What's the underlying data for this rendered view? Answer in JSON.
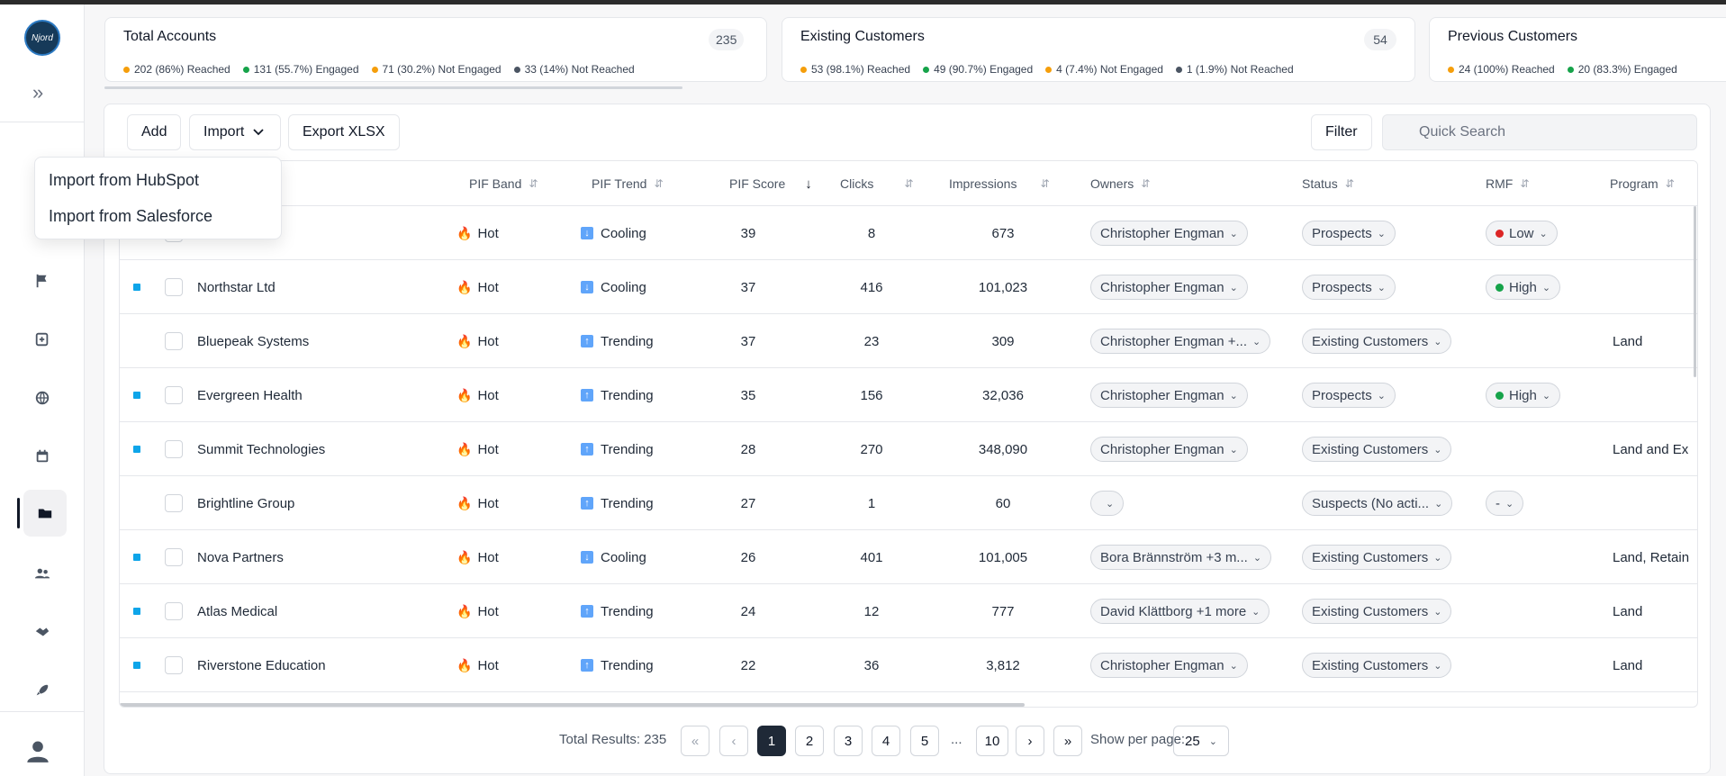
{
  "app": {
    "logo_text": "Njord"
  },
  "sidebar": {
    "icons": [
      "expand-icon",
      "dashboard-icon",
      "flag-icon",
      "add-file-icon",
      "globe-icon",
      "calendar-icon",
      "folder-icon",
      "users-icon",
      "handshake-icon",
      "rocket-icon",
      "user-avatar-icon"
    ],
    "active": "folder-icon"
  },
  "summary": [
    {
      "title": "Total Accounts",
      "count": "235",
      "stats": [
        {
          "text": "202 (86%) Reached",
          "color": "#f59e0b"
        },
        {
          "text": "131 (55.7%) Engaged",
          "color": "#16a34a"
        },
        {
          "text": "71 (30.2%) Not Engaged",
          "color": "#f59e0b"
        },
        {
          "text": "33 (14%) Not Reached",
          "color": "#4b5563"
        }
      ]
    },
    {
      "title": "Existing Customers",
      "count": "54",
      "stats": [
        {
          "text": "53 (98.1%) Reached",
          "color": "#f59e0b"
        },
        {
          "text": "49 (90.7%) Engaged",
          "color": "#16a34a"
        },
        {
          "text": "4 (7.4%) Not Engaged",
          "color": "#f59e0b"
        },
        {
          "text": "1 (1.9%) Not Reached",
          "color": "#4b5563"
        }
      ]
    },
    {
      "title": "Previous Customers",
      "count": "",
      "stats": [
        {
          "text": "24 (100%) Reached",
          "color": "#f59e0b"
        },
        {
          "text": "20 (83.3%) Engaged",
          "color": "#16a34a"
        }
      ]
    }
  ],
  "toolbar": {
    "add_label": "Add",
    "import_label": "Import",
    "export_label": "Export XLSX",
    "filter_label": "Filter",
    "search_placeholder": "Quick Search"
  },
  "import_menu": {
    "items": [
      "Import from HubSpot",
      "Import from Salesforce"
    ]
  },
  "table": {
    "columns": [
      "PIF Band",
      "PIF Trend",
      "PIF Score",
      "Clicks",
      "Impressions",
      "Owners",
      "Status",
      "RMF",
      "Program"
    ],
    "rows": [
      {
        "marker": false,
        "name": "",
        "band": "Hot",
        "trend": "Cooling",
        "score": "39",
        "clicks": "8",
        "impressions": "673",
        "owner": "Christopher Engman",
        "status": "Prospects",
        "rmf": "Low",
        "rmf_color": "#dc2626",
        "program": ""
      },
      {
        "marker": true,
        "name": "Northstar Ltd",
        "band": "Hot",
        "trend": "Cooling",
        "score": "37",
        "clicks": "416",
        "impressions": "101,023",
        "owner": "Christopher Engman",
        "status": "Prospects",
        "rmf": "High",
        "rmf_color": "#16a34a",
        "program": ""
      },
      {
        "marker": false,
        "name": "Bluepeak Systems",
        "band": "Hot",
        "trend": "Trending",
        "score": "37",
        "clicks": "23",
        "impressions": "309",
        "owner": "Christopher Engman +...",
        "status": "Existing Customers",
        "rmf": "",
        "rmf_color": "",
        "program": "Land"
      },
      {
        "marker": true,
        "name": "Evergreen Health",
        "band": "Hot",
        "trend": "Trending",
        "score": "35",
        "clicks": "156",
        "impressions": "32,036",
        "owner": "Christopher Engman",
        "status": "Prospects",
        "rmf": "High",
        "rmf_color": "#16a34a",
        "program": ""
      },
      {
        "marker": true,
        "name": "Summit Technologies",
        "band": "Hot",
        "trend": "Trending",
        "score": "28",
        "clicks": "270",
        "impressions": "348,090",
        "owner": "Christopher Engman",
        "status": "Existing Customers",
        "rmf": "",
        "rmf_color": "",
        "program": "Land and Ex"
      },
      {
        "marker": false,
        "name": "Brightline Group",
        "band": "Hot",
        "trend": "Trending",
        "score": "27",
        "clicks": "1",
        "impressions": "60",
        "owner": "",
        "status": "Suspects (No acti...",
        "rmf": "-",
        "rmf_color": "",
        "program": ""
      },
      {
        "marker": true,
        "name": "Nova Partners",
        "band": "Hot",
        "trend": "Cooling",
        "score": "26",
        "clicks": "401",
        "impressions": "101,005",
        "owner": "Bora Brännström +3 m...",
        "status": "Existing Customers",
        "rmf": "",
        "rmf_color": "",
        "program": "Land, Retain"
      },
      {
        "marker": true,
        "name": "Atlas Medical",
        "band": "Hot",
        "trend": "Trending",
        "score": "24",
        "clicks": "12",
        "impressions": "777",
        "owner": "David Klättborg +1 more",
        "status": "Existing Customers",
        "rmf": "",
        "rmf_color": "",
        "program": "Land"
      },
      {
        "marker": true,
        "name": "Riverstone Education",
        "band": "Hot",
        "trend": "Trending",
        "score": "22",
        "clicks": "36",
        "impressions": "3,812",
        "owner": "Christopher Engman",
        "status": "Existing Customers",
        "rmf": "",
        "rmf_color": "",
        "program": "Land"
      }
    ]
  },
  "pagination": {
    "total_label": "Total Results: 235",
    "pages": [
      "1",
      "2",
      "3",
      "4",
      "5"
    ],
    "ellipsis": "...",
    "last_page": "10",
    "active_page": "1",
    "show_per_page_label": "Show per page:",
    "per_page": "25"
  }
}
